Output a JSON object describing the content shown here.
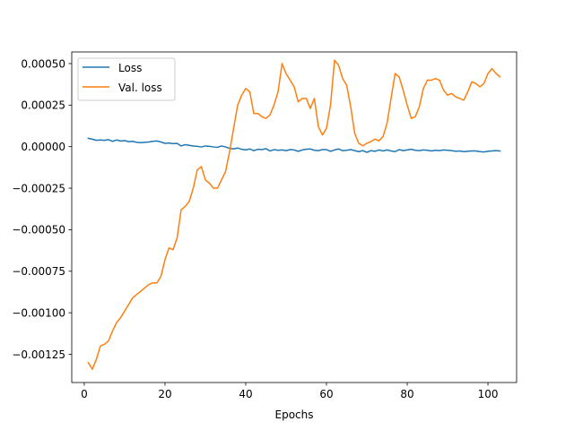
{
  "chart_data": {
    "type": "line",
    "title": "",
    "xlabel": "Epochs",
    "ylabel": "",
    "xlim": [
      -3.1,
      107.1
    ],
    "ylim": [
      -0.00142,
      0.00057
    ],
    "xticks": [
      0,
      20,
      40,
      60,
      80,
      100
    ],
    "xtick_labels": [
      "0",
      "20",
      "40",
      "60",
      "80",
      "100"
    ],
    "yticks": [
      -0.00125,
      -0.001,
      -0.00075,
      -0.0005,
      -0.00025,
      0,
      0.00025,
      0.0005
    ],
    "ytick_labels": [
      "−0.00125",
      "−0.00100",
      "−0.00075",
      "−0.00050",
      "−0.00025",
      "0.00000",
      "0.00025",
      "0.00050"
    ],
    "grid": false,
    "legend": {
      "position": "top-left"
    },
    "series": [
      {
        "name": "Loss",
        "color": "#1f77b4",
        "x": [
          1,
          2,
          3,
          4,
          5,
          6,
          7,
          8,
          9,
          10,
          11,
          12,
          13,
          14,
          15,
          16,
          17,
          18,
          19,
          20,
          21,
          22,
          23,
          24,
          25,
          26,
          27,
          28,
          29,
          30,
          31,
          32,
          33,
          34,
          35,
          36,
          37,
          38,
          39,
          40,
          41,
          42,
          43,
          44,
          45,
          46,
          47,
          48,
          49,
          50,
          51,
          52,
          53,
          54,
          55,
          56,
          57,
          58,
          59,
          60,
          61,
          62,
          63,
          64,
          65,
          66,
          67,
          68,
          69,
          70,
          71,
          72,
          73,
          74,
          75,
          76,
          77,
          78,
          79,
          80,
          81,
          82,
          83,
          84,
          85,
          86,
          87,
          88,
          89,
          90,
          91,
          92,
          93,
          94,
          95,
          96,
          97,
          98,
          99,
          100,
          101,
          102,
          103
        ],
        "values": [
          5e-05,
          4.5e-05,
          3.8e-05,
          4e-05,
          3.8e-05,
          4.2e-05,
          3.2e-05,
          4e-05,
          3.4e-05,
          3.6e-05,
          3e-05,
          3.2e-05,
          2.6e-05,
          2.4e-05,
          2.6e-05,
          2.8e-05,
          3.2e-05,
          3.4e-05,
          2.8e-05,
          2e-05,
          2.2e-05,
          1.8e-05,
          2e-05,
          4e-06,
          1.2e-05,
          8e-06,
          4e-06,
          2e-06,
          -2e-06,
          4e-06,
          2e-06,
          -2e-06,
          -4e-06,
          4e-06,
          -2e-06,
          -1e-05,
          -1.4e-05,
          -8e-06,
          -1.6e-05,
          -2e-05,
          -1.4e-05,
          -2.4e-05,
          -1.6e-05,
          -1.8e-05,
          -1.2e-05,
          -2.6e-05,
          -1.8e-05,
          -2.2e-05,
          -2e-05,
          -2.4e-05,
          -1.8e-05,
          -2e-05,
          -2.8e-05,
          -2e-05,
          -1.6e-05,
          -1.4e-05,
          -2.2e-05,
          -2.4e-05,
          -1.8e-05,
          -1.8e-05,
          -2.8e-05,
          -2e-05,
          -1.4e-05,
          -2.4e-05,
          -2.2e-05,
          -1.8e-05,
          -2.4e-05,
          -3e-05,
          -2.4e-05,
          -3.4e-05,
          -2.4e-05,
          -2.8e-05,
          -2e-05,
          -2.6e-05,
          -2e-05,
          -2.6e-05,
          -3e-05,
          -1.8e-05,
          -2.4e-05,
          -2e-05,
          -1.6e-05,
          -2.2e-05,
          -2.4e-05,
          -2e-05,
          -2.2e-05,
          -2.6e-05,
          -2.2e-05,
          -2.4e-05,
          -2e-05,
          -2.2e-05,
          -2.4e-05,
          -2.8e-05,
          -2.6e-05,
          -3e-05,
          -2.8e-05,
          -2.6e-05,
          -2.6e-05,
          -3e-05,
          -3.2e-05,
          -2.8e-05,
          -2.6e-05,
          -2.4e-05,
          -2.6e-05
        ]
      },
      {
        "name": "Val. loss",
        "color": "#ff7f0e",
        "x": [
          1,
          2,
          3,
          4,
          5,
          6,
          7,
          8,
          9,
          10,
          11,
          12,
          13,
          14,
          15,
          16,
          17,
          18,
          19,
          20,
          21,
          22,
          23,
          24,
          25,
          26,
          27,
          28,
          29,
          30,
          31,
          32,
          33,
          34,
          35,
          36,
          37,
          38,
          39,
          40,
          41,
          42,
          43,
          44,
          45,
          46,
          47,
          48,
          49,
          50,
          51,
          52,
          53,
          54,
          55,
          56,
          57,
          58,
          59,
          60,
          61,
          62,
          63,
          64,
          65,
          66,
          67,
          68,
          69,
          70,
          71,
          72,
          73,
          74,
          75,
          76,
          77,
          78,
          79,
          80,
          81,
          82,
          83,
          84,
          85,
          86,
          87,
          88,
          89,
          90,
          91,
          92,
          93,
          94,
          95,
          96,
          97,
          98,
          99,
          100,
          101,
          102,
          103
        ],
        "values": [
          -0.0013,
          -0.00134,
          -0.00128,
          -0.0012,
          -0.00119,
          -0.00117,
          -0.00111,
          -0.00106,
          -0.00103,
          -0.00099,
          -0.00095,
          -0.00091,
          -0.00089,
          -0.00087,
          -0.00085,
          -0.00083,
          -0.00082,
          -0.00082,
          -0.00078,
          -0.00068,
          -0.00061,
          -0.00062,
          -0.00055,
          -0.00038,
          -0.00036,
          -0.00033,
          -0.00025,
          -0.00014,
          -0.00012,
          -0.0002,
          -0.00022,
          -0.00025,
          -0.00025,
          -0.0002,
          -0.00015,
          -3e-05,
          0.00011,
          0.00025,
          0.00031,
          0.00035,
          0.00033,
          0.0002,
          0.0002,
          0.00018,
          0.00017,
          0.00019,
          0.00025,
          0.00033,
          0.0005,
          0.00044,
          0.0004,
          0.00036,
          0.00027,
          0.00029,
          0.00029,
          0.00023,
          0.00029,
          0.00012,
          7e-05,
          0.00011,
          0.00025,
          0.00052,
          0.00049,
          0.00041,
          0.00037,
          0.00024,
          8e-05,
          2e-05,
          5e-06,
          2e-05,
          3e-05,
          4.5e-05,
          3.5e-05,
          6e-05,
          0.00014,
          0.00029,
          0.00044,
          0.00042,
          0.00034,
          0.00025,
          0.00017,
          0.00018,
          0.00024,
          0.00035,
          0.0004,
          0.0004,
          0.00041,
          0.0004,
          0.00034,
          0.00031,
          0.00032,
          0.0003,
          0.00029,
          0.00028,
          0.00033,
          0.00039,
          0.00038,
          0.00036,
          0.00038,
          0.00044,
          0.00047,
          0.00044,
          0.00042
        ]
      }
    ]
  }
}
